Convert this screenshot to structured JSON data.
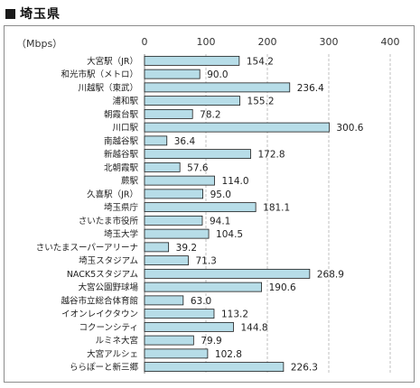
{
  "page": {
    "title": "埼玉県"
  },
  "chart_data": {
    "type": "bar",
    "orientation": "horizontal",
    "title": "埼玉県",
    "unit_label": "（Mbps）",
    "xlim": [
      0,
      400
    ],
    "ticks": [
      0,
      100,
      200,
      300,
      400
    ],
    "grid": true,
    "legend": "none",
    "bar_color": "#b7dde8",
    "bar_edge_color": "#1c1c1c",
    "categories": [
      "大宮駅（JR）",
      "和光市駅（メトロ）",
      "川越駅（東武）",
      "浦和駅",
      "朝霞台駅",
      "川口駅",
      "南越谷駅",
      "新越谷駅",
      "北朝霞駅",
      "蕨駅",
      "久喜駅（JR）",
      "埼玉県庁",
      "さいたま市役所",
      "埼玉大学",
      "さいたまスーパーアリーナ",
      "埼玉スタジアム",
      "NACK5スタジアム",
      "大宮公園野球場",
      "越谷市立総合体育館",
      "イオンレイクタウン",
      "コクーンシティ",
      "ルミネ大宮",
      "大宮アルシェ",
      "ららぽーと新三郷"
    ],
    "values": [
      154.2,
      90.0,
      236.4,
      155.2,
      78.2,
      300.6,
      36.4,
      172.8,
      57.6,
      114.0,
      95.0,
      181.1,
      94.1,
      104.5,
      39.2,
      71.3,
      268.9,
      190.6,
      63.0,
      113.2,
      144.8,
      79.9,
      102.8,
      226.3
    ],
    "value_labels": [
      "154.2",
      "90.0",
      "236.4",
      "155.2",
      "78.2",
      "300.6",
      "36.4",
      "172.8",
      "57.6",
      "114.0",
      "95.0",
      "181.1",
      "94.1",
      "104.5",
      "39.2",
      "71.3",
      "268.9",
      "190.6",
      "63.0",
      "113.2",
      "144.8",
      "79.9",
      "102.8",
      "226.3"
    ]
  }
}
